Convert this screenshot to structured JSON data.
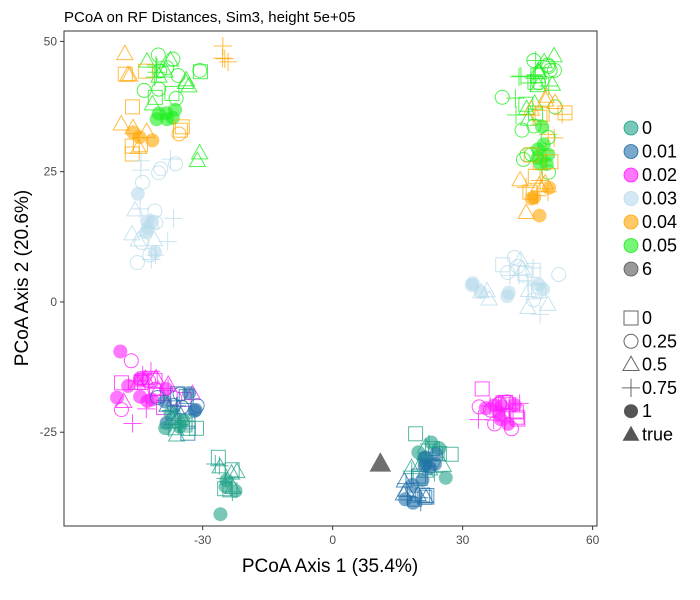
{
  "chart_data": {
    "type": "scatter",
    "title": "PCoA on RF Distances, Sim3, height 5e+05",
    "xlabel": "PCoA Axis 1 (35.4%)",
    "ylabel": "PCoA Axis 2 (20.6%)",
    "xlim": [
      -62,
      61
    ],
    "ylim": [
      -43,
      52
    ],
    "x_ticks": [
      -30,
      0,
      30,
      60
    ],
    "y_ticks": [
      -25,
      0,
      25,
      50
    ],
    "x_tick_labels": [
      "-30",
      "0",
      "30",
      "60"
    ],
    "y_tick_labels": [
      "-25",
      "0",
      "25",
      "50"
    ],
    "grid": false,
    "legend_position": "right",
    "color_legend": [
      {
        "label": "0",
        "color": "#1fa187"
      },
      {
        "label": "0.01",
        "color": "#1f6ea8"
      },
      {
        "label": "0.02",
        "color": "#ff1aff"
      },
      {
        "label": "0.03",
        "color": "#b7dbeb"
      },
      {
        "label": "0.04",
        "color": "#ffa500"
      },
      {
        "label": "0.05",
        "color": "#1aee1a"
      },
      {
        "label": "6",
        "color": "#555555"
      }
    ],
    "shape_legend": [
      {
        "label": "0",
        "shape": "square-open"
      },
      {
        "label": "0.25",
        "shape": "circle-open"
      },
      {
        "label": "0.5",
        "shape": "triangle-open"
      },
      {
        "label": "0.75",
        "shape": "plus"
      },
      {
        "label": "1",
        "shape": "circle-filled"
      },
      {
        "label": "true",
        "shape": "triangle-filled"
      }
    ],
    "clusters": [
      {
        "color": "0.05",
        "cx": -41,
        "cy": 44,
        "sx": 2.5,
        "sy": 3,
        "shapes": [
          "circle-open",
          "triangle-open",
          "plus"
        ],
        "n": 14
      },
      {
        "color": "0.05",
        "cx": -38,
        "cy": 36,
        "sx": 1.2,
        "sy": 1,
        "shapes": [
          "circle-filled"
        ],
        "n": 6
      },
      {
        "color": "0.05",
        "cx": -33,
        "cy": 42,
        "sx": 3,
        "sy": 3,
        "shapes": [
          "circle-open",
          "triangle-open",
          "square-open"
        ],
        "n": 10
      },
      {
        "color": "0.04",
        "cx": -47,
        "cy": 45,
        "sx": 2,
        "sy": 3,
        "shapes": [
          "square-open",
          "triangle-open"
        ],
        "n": 6
      },
      {
        "color": "0.04",
        "cx": -25,
        "cy": 47,
        "sx": 1.5,
        "sy": 1,
        "shapes": [
          "plus"
        ],
        "n": 4
      },
      {
        "color": "0.04",
        "cx": -45,
        "cy": 31,
        "sx": 4,
        "sy": 2,
        "shapes": [
          "triangle-open",
          "circle-filled",
          "square-open"
        ],
        "n": 10
      },
      {
        "color": "0.04",
        "cx": -35,
        "cy": 33,
        "sx": 1.5,
        "sy": 2,
        "shapes": [
          "square-open",
          "circle-open"
        ],
        "n": 3
      },
      {
        "color": "0.05",
        "cx": -31,
        "cy": 29,
        "sx": 1.5,
        "sy": 1,
        "shapes": [
          "triangle-open"
        ],
        "n": 2
      },
      {
        "color": "0.03",
        "cx": -41,
        "cy": 26,
        "sx": 2,
        "sy": 1.5,
        "shapes": [
          "circle-open",
          "plus"
        ],
        "n": 6
      },
      {
        "color": "0.03",
        "cx": -43,
        "cy": 14,
        "sx": 2.5,
        "sy": 4,
        "shapes": [
          "circle-filled",
          "circle-open",
          "plus",
          "triangle-open"
        ],
        "n": 22
      },
      {
        "color": "0.02",
        "cx": -42,
        "cy": -15,
        "sx": 3.5,
        "sy": 3,
        "shapes": [
          "circle-filled",
          "circle-open",
          "plus",
          "triangle-open",
          "square-open"
        ],
        "n": 36
      },
      {
        "color": "0.01",
        "cx": -35,
        "cy": -21,
        "sx": 2.5,
        "sy": 2,
        "shapes": [
          "circle-filled",
          "circle-open",
          "plus",
          "triangle-open",
          "square-open"
        ],
        "n": 22
      },
      {
        "color": "0",
        "cx": -35,
        "cy": -24,
        "sx": 2.5,
        "sy": 2,
        "shapes": [
          "circle-filled",
          "triangle-open",
          "square-open",
          "plus"
        ],
        "n": 16
      },
      {
        "color": "0",
        "cx": -25,
        "cy": -33,
        "sx": 1.5,
        "sy": 2.5,
        "shapes": [
          "circle-filled",
          "square-open",
          "triangle-open",
          "plus"
        ],
        "n": 16
      },
      {
        "color": "0.05",
        "cx": 48,
        "cy": 43,
        "sx": 3,
        "sy": 2.5,
        "shapes": [
          "plus",
          "triangle-open",
          "circle-open"
        ],
        "n": 16
      },
      {
        "color": "0.05",
        "cx": 46,
        "cy": 40,
        "sx": 4,
        "sy": 2.5,
        "shapes": [
          "square-open",
          "triangle-open",
          "circle-open",
          "plus"
        ],
        "n": 14
      },
      {
        "color": "0.04",
        "cx": 50,
        "cy": 36,
        "sx": 2.5,
        "sy": 3,
        "shapes": [
          "triangle-open",
          "plus",
          "square-open"
        ],
        "n": 12
      },
      {
        "color": "0.05",
        "cx": 47,
        "cy": 28,
        "sx": 2,
        "sy": 3,
        "shapes": [
          "circle-filled",
          "circle-open"
        ],
        "n": 14
      },
      {
        "color": "0.04",
        "cx": 48,
        "cy": 22,
        "sx": 2,
        "sy": 3,
        "shapes": [
          "circle-filled",
          "plus",
          "triangle-open",
          "square-open"
        ],
        "n": 16
      },
      {
        "color": "0.03",
        "cx": 44,
        "cy": 4,
        "sx": 3,
        "sy": 3,
        "shapes": [
          "plus",
          "triangle-open",
          "circle-open",
          "square-open",
          "circle-filled"
        ],
        "n": 24
      },
      {
        "color": "0.03",
        "cx": 33,
        "cy": 1,
        "sx": 2,
        "sy": 1.5,
        "shapes": [
          "circle-filled",
          "triangle-open"
        ],
        "n": 6
      },
      {
        "color": "0.02",
        "cx": 38,
        "cy": -21,
        "sx": 3,
        "sy": 2,
        "shapes": [
          "plus",
          "circle-filled",
          "square-open",
          "circle-open"
        ],
        "n": 28
      },
      {
        "color": "0",
        "cx": 22,
        "cy": -30,
        "sx": 2.5,
        "sy": 2,
        "shapes": [
          "triangle-open",
          "square-open",
          "plus",
          "circle-filled"
        ],
        "n": 24
      },
      {
        "color": "0.01",
        "cx": 19,
        "cy": -37,
        "sx": 1.5,
        "sy": 1.5,
        "shapes": [
          "triangle-open",
          "square-open",
          "circle-filled",
          "plus"
        ],
        "n": 18
      },
      {
        "color": "0.01",
        "cx": 22,
        "cy": -31,
        "sx": 1.5,
        "sy": 1.5,
        "shapes": [
          "circle-filled"
        ],
        "n": 5
      }
    ],
    "true_point": {
      "x": 11,
      "y": -31,
      "color": "6",
      "shape": "triangle-filled"
    }
  }
}
